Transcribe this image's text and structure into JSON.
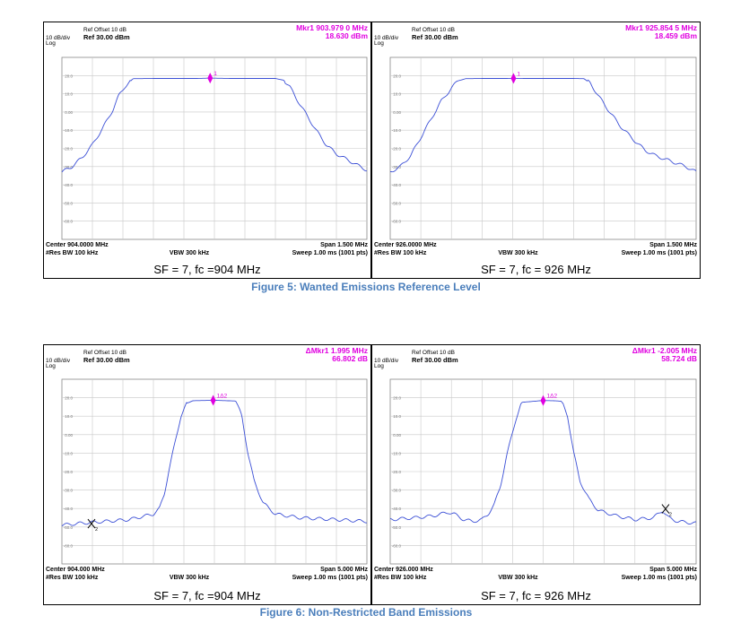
{
  "captions": {
    "figure5": "Figure 5: Wanted Emissions Reference Level",
    "figure6": "Figure 6: Non-Restricted Band Emissions"
  },
  "colors": {
    "trace": "#3b4fd6",
    "marker": "#e000e0",
    "grid": "#c8c8c8",
    "text": "#000000"
  },
  "chart_data": [
    {
      "type": "line",
      "panel_id": "p1",
      "scale_label": "10 dB/div",
      "scale_mode": "Log",
      "ref_offset": "Ref Offset 10 dB",
      "ref_level": "Ref 30.00 dBm",
      "marker_line1": "Mkr1 903.979 0 MHz",
      "marker_line2": "18.630 dBm",
      "y_tick_labels": [
        "20.0",
        "10.0",
        "0.00",
        "-10.0",
        "-20.0",
        "-30.0",
        "-40.0",
        "-50.0",
        "-60.0"
      ],
      "ylim": [
        -70,
        30
      ],
      "xlim": [
        903.25,
        904.75
      ],
      "footer_left1": "Center 904.0000 MHz",
      "footer_left2": "#Res BW 100 kHz",
      "footer_mid": "VBW 300 kHz",
      "footer_right1": "Span 1.500 MHz",
      "footer_right2": "Sweep  1.00 ms (1001 pts)",
      "subtitle": "SF = 7, fc =904 MHz",
      "markers": [
        {
          "label": "1",
          "x": 903.979,
          "y": 18.63,
          "symbol": "diamond"
        }
      ],
      "series": [
        {
          "x": [
            903.25,
            903.3,
            903.35,
            903.4,
            903.45,
            903.5,
            903.53,
            903.56,
            903.6,
            903.7,
            903.8,
            903.9,
            903.98,
            904.1,
            904.2,
            904.3,
            904.34,
            904.37,
            904.4,
            904.45,
            904.5,
            904.55,
            904.6,
            904.65,
            904.7,
            904.75
          ],
          "y": [
            -33,
            -30,
            -25,
            -18,
            -9,
            1,
            9,
            14,
            18.3,
            18.4,
            18.4,
            18.4,
            18.6,
            18.4,
            18.4,
            18.4,
            17.5,
            14,
            8,
            -1,
            -10,
            -18,
            -23,
            -26,
            -29,
            -32
          ]
        }
      ]
    },
    {
      "type": "line",
      "panel_id": "p2",
      "scale_label": "10 dB/div",
      "scale_mode": "Log",
      "ref_offset": "Ref Offset 10 dB",
      "ref_level": "Ref 30.00 dBm",
      "marker_line1": "Mkr1 925.854 5 MHz",
      "marker_line2": "18.459 dBm",
      "y_tick_labels": [
        "20.0",
        "10.0",
        "0.00",
        "-10.0",
        "-20.0",
        "-30.0",
        "-40.0",
        "-50.0",
        "-60.0"
      ],
      "ylim": [
        -70,
        30
      ],
      "xlim": [
        925.25,
        926.75
      ],
      "footer_left1": "Center 926.0000 MHz",
      "footer_left2": "#Res BW 100 kHz",
      "footer_mid": "VBW 300 kHz",
      "footer_right1": "Span 1.500 MHz",
      "footer_right2": "Sweep  1.00 ms (1001 pts)",
      "subtitle": "SF = 7, fc = 926 MHz",
      "markers": [
        {
          "label": "1",
          "x": 925.8545,
          "y": 18.459,
          "symbol": "diamond"
        }
      ],
      "series": [
        {
          "x": [
            925.25,
            925.3,
            925.35,
            925.4,
            925.45,
            925.5,
            925.55,
            925.58,
            925.62,
            925.7,
            925.8,
            925.85,
            925.95,
            926.05,
            926.15,
            926.2,
            926.23,
            926.27,
            926.32,
            926.38,
            926.45,
            926.5,
            926.55,
            926.6,
            926.65,
            926.7,
            926.75
          ],
          "y": [
            -33,
            -30,
            -24,
            -14,
            -4,
            6,
            13,
            17,
            18.3,
            18.4,
            18.4,
            18.5,
            18.4,
            18.4,
            18.4,
            18.3,
            16,
            9,
            1,
            -8,
            -16,
            -21,
            -24,
            -26,
            -28,
            -30,
            -33
          ]
        }
      ]
    },
    {
      "type": "line",
      "panel_id": "p3",
      "scale_label": "10 dB/div",
      "scale_mode": "Log",
      "ref_offset": "Ref Offset 10 dB",
      "ref_level": "Ref 30.00 dBm",
      "marker_line1": "ΔMkr1 1.995 MHz",
      "marker_line2": "66.802 dB",
      "y_tick_labels": [
        "20.0",
        "10.0",
        "0.00",
        "-10.0",
        "-20.0",
        "-30.0",
        "-40.0",
        "-50.0",
        "-60.0"
      ],
      "ylim": [
        -70,
        30
      ],
      "xlim": [
        901.5,
        906.5
      ],
      "footer_left1": "Center 904.000 MHz",
      "footer_left2": "#Res BW 100 kHz",
      "footer_mid": "VBW 300 kHz",
      "footer_right1": "Span 5.000 MHz",
      "footer_right2": "Sweep  1.00 ms (1001 pts)",
      "subtitle": "SF = 7, fc =904 MHz",
      "markers": [
        {
          "label": "1Δ2",
          "x": 903.98,
          "y": 18.6,
          "symbol": "diamond"
        },
        {
          "label": "2",
          "x": 901.985,
          "y": -48.2,
          "symbol": "x"
        }
      ],
      "series": [
        {
          "x": [
            901.5,
            901.8,
            902.2,
            902.6,
            903.0,
            903.1,
            903.18,
            903.25,
            903.35,
            903.45,
            903.55,
            903.65,
            904.0,
            904.2,
            904.35,
            904.45,
            904.55,
            904.65,
            904.8,
            905.0,
            905.4,
            906.0,
            906.5
          ],
          "y": [
            -49,
            -48,
            -47,
            -46,
            -43,
            -40,
            -32,
            -20,
            -5,
            10,
            17,
            18.4,
            18.6,
            18.4,
            18.2,
            10,
            -10,
            -25,
            -37,
            -43,
            -45,
            -46,
            -47
          ]
        }
      ]
    },
    {
      "type": "line",
      "panel_id": "p4",
      "scale_label": "10 dB/div",
      "scale_mode": "Log",
      "ref_offset": "Ref Offset 10 dB",
      "ref_level": "Ref 30.00 dBm",
      "marker_line1": "ΔMkr1 -2.005 MHz",
      "marker_line2": "58.724 dB",
      "y_tick_labels": [
        "20.0",
        "10.0",
        "0.00",
        "-10.0",
        "-20.0",
        "-30.0",
        "-40.0",
        "-50.0",
        "-60.0"
      ],
      "ylim": [
        -70,
        30
      ],
      "xlim": [
        923.5,
        928.5
      ],
      "footer_left1": "Center 926.000 MHz",
      "footer_left2": "#Res BW 100 kHz",
      "footer_mid": "VBW 300 kHz",
      "footer_right1": "Span 5.000 MHz",
      "footer_right2": "Sweep  1.00 ms (1001 pts)",
      "subtitle": "SF = 7, fc = 926 MHz",
      "markers": [
        {
          "label": "1Δ2",
          "x": 926.0,
          "y": 18.5,
          "symbol": "diamond"
        },
        {
          "label": "2",
          "x": 928.0,
          "y": -40.2,
          "symbol": "x"
        }
      ],
      "series": [
        {
          "x": [
            923.5,
            923.9,
            924.2,
            924.45,
            924.55,
            924.7,
            924.85,
            925.0,
            925.1,
            925.2,
            925.3,
            925.4,
            925.55,
            925.65,
            926.0,
            926.15,
            926.3,
            926.4,
            926.5,
            926.6,
            926.75,
            926.9,
            927.2,
            927.5,
            927.8,
            927.95,
            928.05,
            928.2,
            928.5
          ],
          "y": [
            -46,
            -45,
            -44,
            -42,
            -43,
            -46,
            -47,
            -46,
            -43,
            -38,
            -28,
            -12,
            8,
            17.5,
            18.5,
            18.4,
            18.1,
            10,
            -10,
            -25,
            -35,
            -41,
            -44,
            -46,
            -45,
            -41,
            -45,
            -47,
            -48
          ]
        }
      ]
    }
  ]
}
